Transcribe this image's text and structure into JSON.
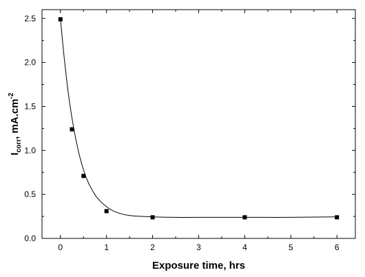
{
  "chart_data": {
    "type": "scatter",
    "title": "",
    "xlabel": "Exposure time, hrs",
    "ylabel": {
      "main": "I",
      "subscript": "corr",
      "rest": ", mA.cm",
      "superscript": "-2"
    },
    "x_ticks": [
      "0",
      "1",
      "2",
      "3",
      "4",
      "5",
      "6"
    ],
    "y_ticks": [
      "0.0",
      "0.5",
      "1.0",
      "1.5",
      "2.0",
      "2.5"
    ],
    "xlim": [
      -0.4,
      6.4
    ],
    "ylim": [
      0.0,
      2.6
    ],
    "grid": false,
    "legend": "none",
    "series": [
      {
        "marker": "square",
        "color": "#000000",
        "points": [
          {
            "x": 0,
            "y": 2.49
          },
          {
            "x": 0.25,
            "y": 1.24
          },
          {
            "x": 0.5,
            "y": 0.71
          },
          {
            "x": 1,
            "y": 0.31
          },
          {
            "x": 2,
            "y": 0.24
          },
          {
            "x": 4,
            "y": 0.24
          },
          {
            "x": 6,
            "y": 0.24
          }
        ]
      }
    ],
    "fit_curve": {
      "style": "solid",
      "color": "#000000",
      "points": [
        {
          "x": 0,
          "y": 2.49
        },
        {
          "x": 0.1,
          "y": 1.96
        },
        {
          "x": 0.2,
          "y": 1.54
        },
        {
          "x": 0.3,
          "y": 1.22
        },
        {
          "x": 0.4,
          "y": 0.97
        },
        {
          "x": 0.5,
          "y": 0.78
        },
        {
          "x": 0.6,
          "y": 0.64
        },
        {
          "x": 0.7,
          "y": 0.54
        },
        {
          "x": 0.8,
          "y": 0.46
        },
        {
          "x": 1.0,
          "y": 0.36
        },
        {
          "x": 1.2,
          "y": 0.3
        },
        {
          "x": 1.5,
          "y": 0.26
        },
        {
          "x": 2.0,
          "y": 0.245
        },
        {
          "x": 2.5,
          "y": 0.24
        },
        {
          "x": 3.0,
          "y": 0.24
        },
        {
          "x": 4.0,
          "y": 0.24
        },
        {
          "x": 5.0,
          "y": 0.24
        },
        {
          "x": 6.0,
          "y": 0.245
        }
      ]
    }
  }
}
